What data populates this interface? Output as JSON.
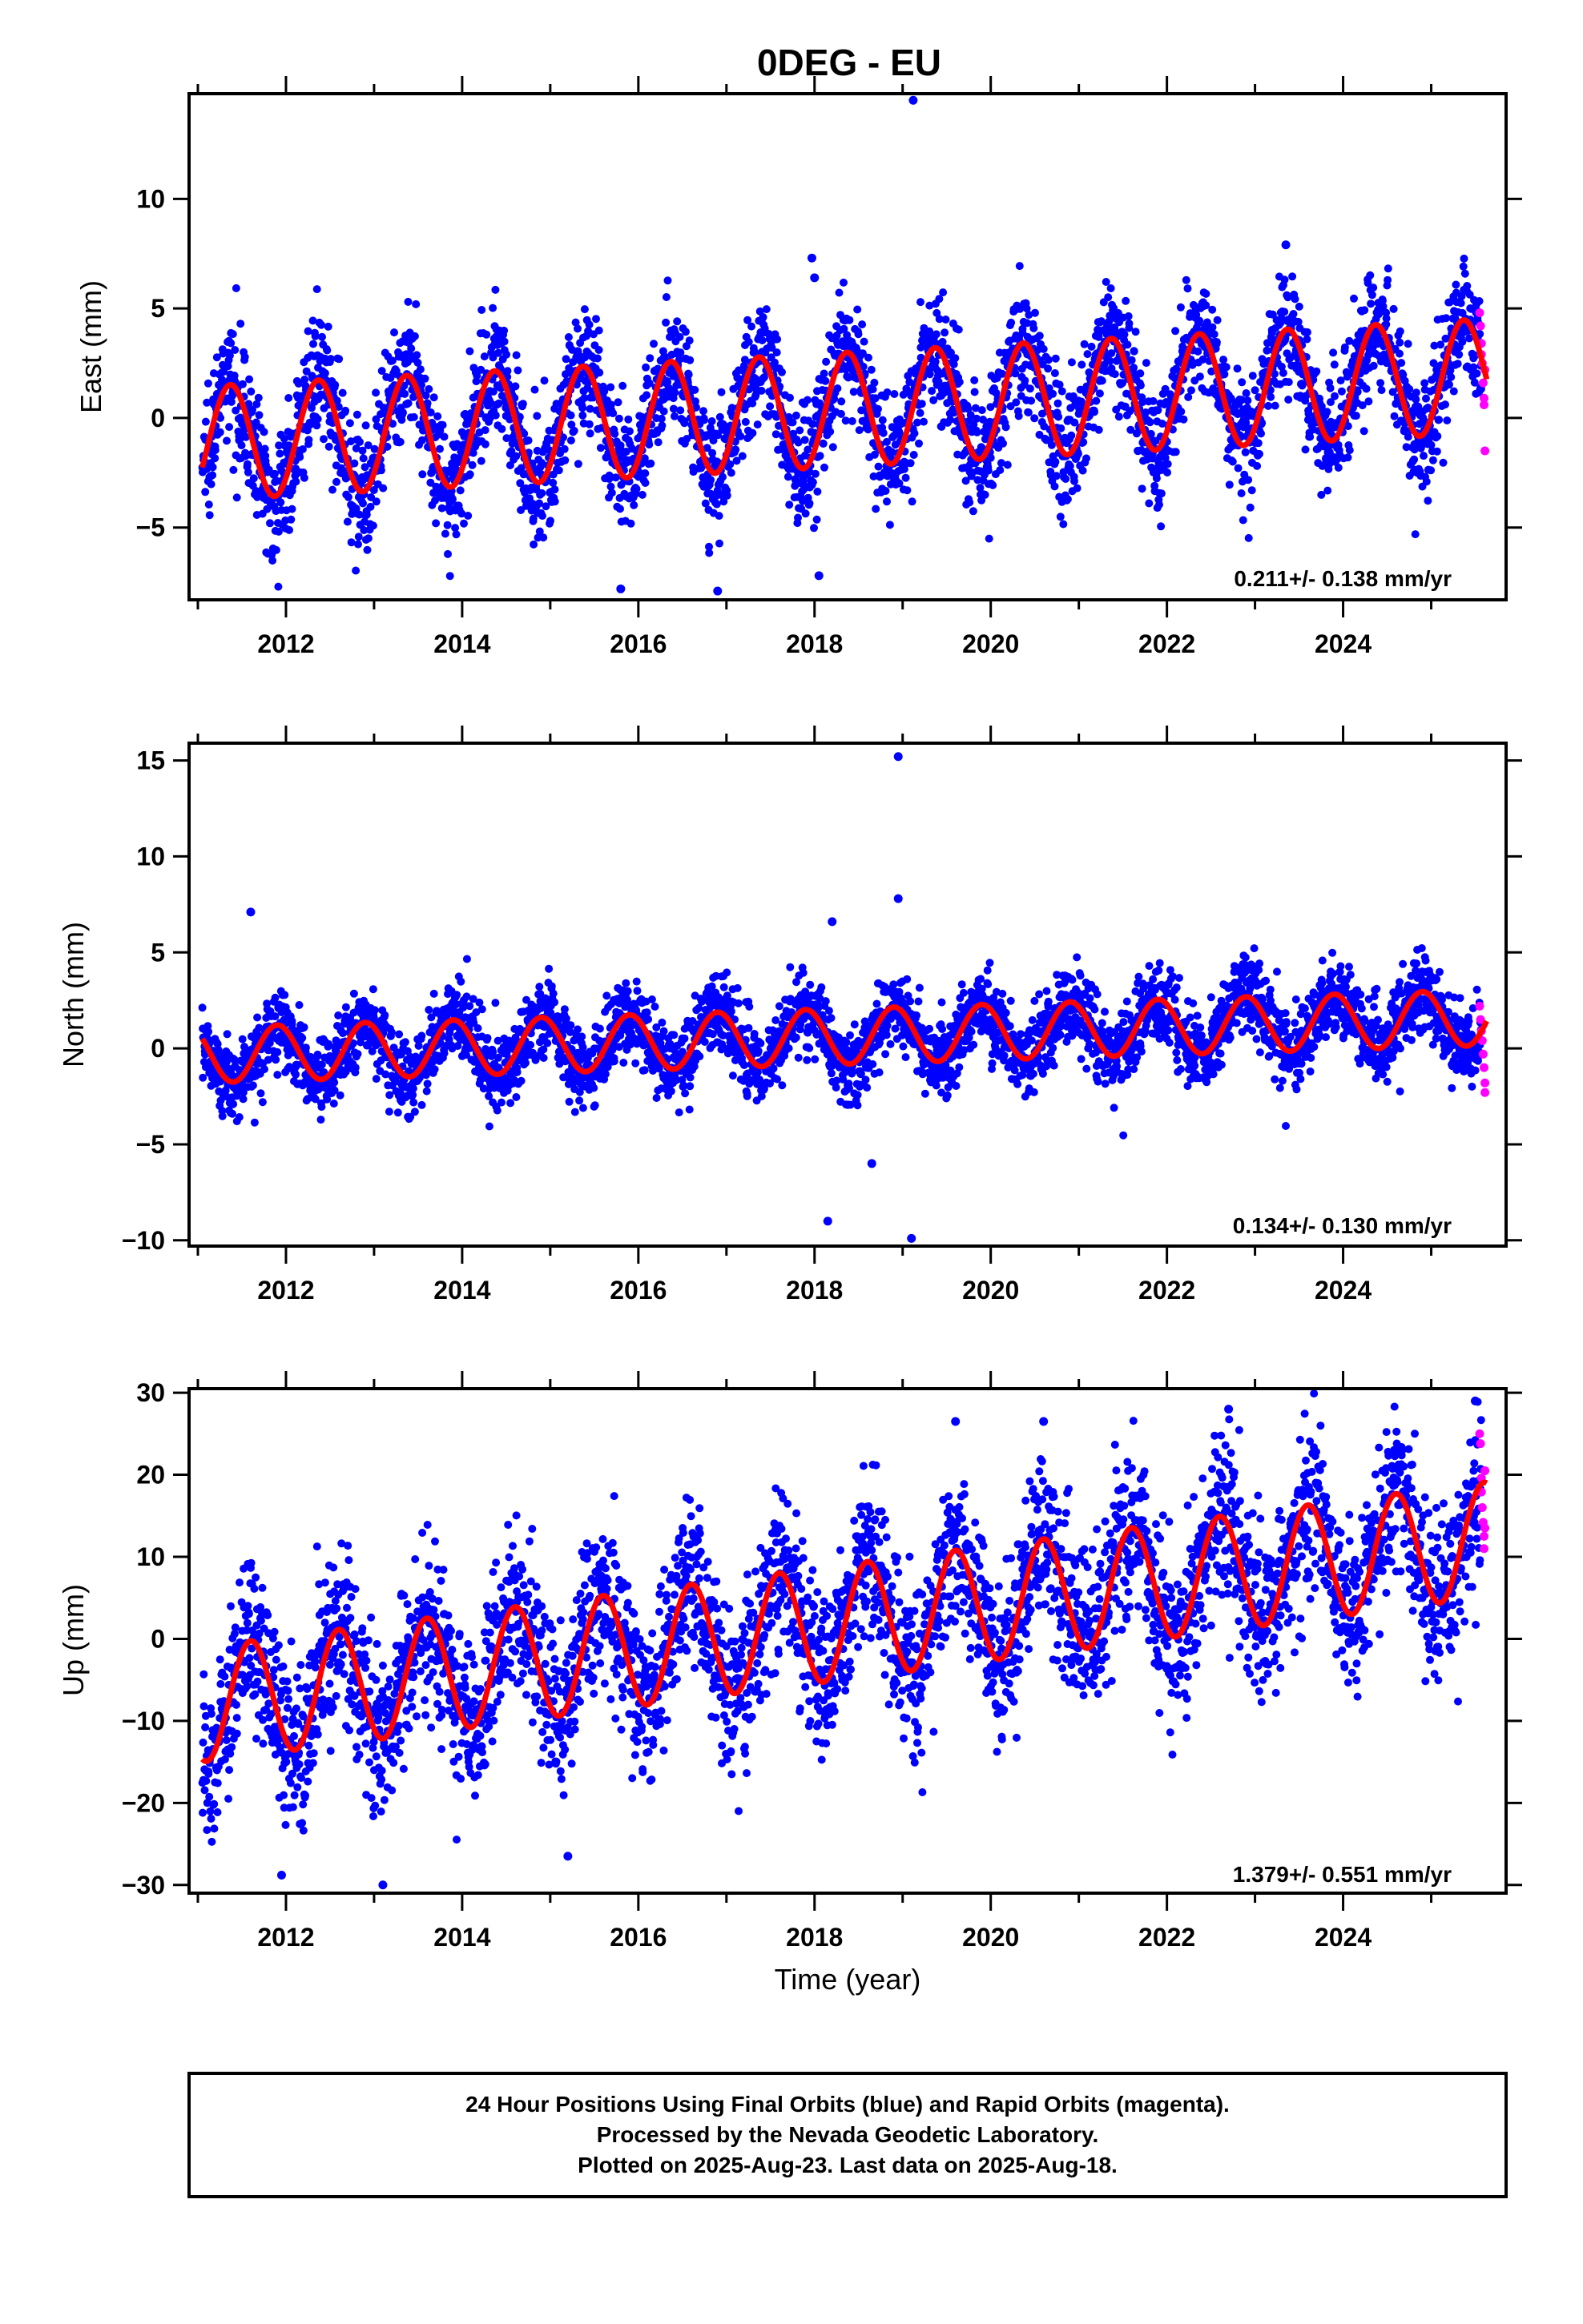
{
  "title": "0DEG - EU",
  "xlabel": "Time (year)",
  "caption": [
    "24 Hour Positions Using Final Orbits (blue) and Rapid Orbits (magenta).",
    "Processed by the Nevada Geodetic Laboratory.",
    "Plotted on 2025-Aug-23. Last data on 2025-Aug-18."
  ],
  "colors": {
    "final_orbits": "#0000ff",
    "rapid_orbits": "#ff00ff",
    "model_fit": "#ff0000"
  },
  "chart_data": [
    {
      "type": "scatter",
      "ylabel": "East (mm)",
      "xlim": [
        2010.9,
        2025.85
      ],
      "ylim": [
        -8.3,
        14.8
      ],
      "xticks": [
        2012,
        2014,
        2016,
        2018,
        2020,
        2022,
        2024
      ],
      "yticks": [
        -5,
        0,
        5,
        10
      ],
      "rate_label": "0.211+/- 0.138 mm/yr",
      "model": {
        "t0": 2011.05,
        "offset": -1.15,
        "rate": 0.211,
        "amplitude": 2.6,
        "peak_phase": 0.37,
        "end": 2025.63
      },
      "scatter_spread": 1.4,
      "rapid_points": [
        {
          "x": 2025.55,
          "y": 4.8
        },
        {
          "x": 2025.56,
          "y": 4.2
        },
        {
          "x": 2025.57,
          "y": 3.4
        },
        {
          "x": 2025.57,
          "y": 2.9
        },
        {
          "x": 2025.58,
          "y": 2.5
        },
        {
          "x": 2025.59,
          "y": 1.6
        },
        {
          "x": 2025.6,
          "y": 0.9
        },
        {
          "x": 2025.6,
          "y": 0.6
        },
        {
          "x": 2025.61,
          "y": 2.2
        },
        {
          "x": 2025.61,
          "y": -1.5
        }
      ],
      "outliers": [
        {
          "x": 2019.12,
          "y": 14.5
        },
        {
          "x": 2017.97,
          "y": 7.3
        },
        {
          "x": 2018.0,
          "y": 6.4
        },
        {
          "x": 2023.35,
          "y": 7.9
        },
        {
          "x": 2015.8,
          "y": -7.8
        },
        {
          "x": 2016.9,
          "y": -7.9
        },
        {
          "x": 2018.05,
          "y": -7.2
        }
      ]
    },
    {
      "type": "scatter",
      "ylabel": "North (mm)",
      "xlim": [
        2010.9,
        2025.85
      ],
      "ylim": [
        -10.3,
        15.9
      ],
      "xticks": [
        2012,
        2014,
        2016,
        2018,
        2020,
        2022,
        2024
      ],
      "yticks": [
        -10,
        -5,
        0,
        5,
        10,
        15
      ],
      "rate_label": "0.134+/- 0.130 mm/yr",
      "model": {
        "t0": 2011.05,
        "offset": -0.35,
        "rate": 0.134,
        "amplitude": 1.45,
        "peak_phase": 0.9,
        "end": 2025.63
      },
      "scatter_spread": 1.0,
      "rapid_points": [
        {
          "x": 2025.55,
          "y": 2.2
        },
        {
          "x": 2025.56,
          "y": 1.5
        },
        {
          "x": 2025.57,
          "y": 0.9
        },
        {
          "x": 2025.58,
          "y": 0.4
        },
        {
          "x": 2025.59,
          "y": -0.3
        },
        {
          "x": 2025.6,
          "y": -1.0
        },
        {
          "x": 2025.61,
          "y": -1.8
        },
        {
          "x": 2025.61,
          "y": -2.3
        }
      ],
      "outliers": [
        {
          "x": 2011.6,
          "y": 7.1
        },
        {
          "x": 2018.95,
          "y": 15.2
        },
        {
          "x": 2018.95,
          "y": 7.8
        },
        {
          "x": 2018.2,
          "y": 6.6
        },
        {
          "x": 2018.15,
          "y": -9.0
        },
        {
          "x": 2019.1,
          "y": -9.9
        },
        {
          "x": 2018.65,
          "y": -6.0
        }
      ]
    },
    {
      "type": "scatter",
      "ylabel": "Up (mm)",
      "xlim": [
        2010.9,
        2025.85
      ],
      "ylim": [
        -31.0,
        30.5
      ],
      "xticks": [
        2012,
        2014,
        2016,
        2018,
        2020,
        2022,
        2024
      ],
      "yticks": [
        -30,
        -20,
        -10,
        0,
        10,
        20,
        30
      ],
      "rate_label": "1.379+/- 0.551 mm/yr",
      "model": {
        "t0": 2011.05,
        "offset": -8.0,
        "rate": 1.379,
        "amplitude": 7.0,
        "peak_phase": 0.6,
        "end": 2025.63
      },
      "scatter_spread": 5.0,
      "rapid_points": [
        {
          "x": 2025.55,
          "y": 25.0
        },
        {
          "x": 2025.56,
          "y": 23.8
        },
        {
          "x": 2025.57,
          "y": 19.6
        },
        {
          "x": 2025.57,
          "y": 17.9
        },
        {
          "x": 2025.58,
          "y": 16.0
        },
        {
          "x": 2025.59,
          "y": 14.2
        },
        {
          "x": 2025.6,
          "y": 12.5
        },
        {
          "x": 2025.6,
          "y": 11.0
        },
        {
          "x": 2025.61,
          "y": 20.5
        },
        {
          "x": 2025.61,
          "y": 13.5
        }
      ],
      "outliers": [
        {
          "x": 2013.1,
          "y": -30.0
        },
        {
          "x": 2011.95,
          "y": -28.8
        },
        {
          "x": 2015.2,
          "y": -26.5
        },
        {
          "x": 2019.6,
          "y": 26.5
        },
        {
          "x": 2020.6,
          "y": 26.5
        },
        {
          "x": 2022.7,
          "y": 28.0
        },
        {
          "x": 2025.5,
          "y": 29.0
        }
      ]
    }
  ]
}
